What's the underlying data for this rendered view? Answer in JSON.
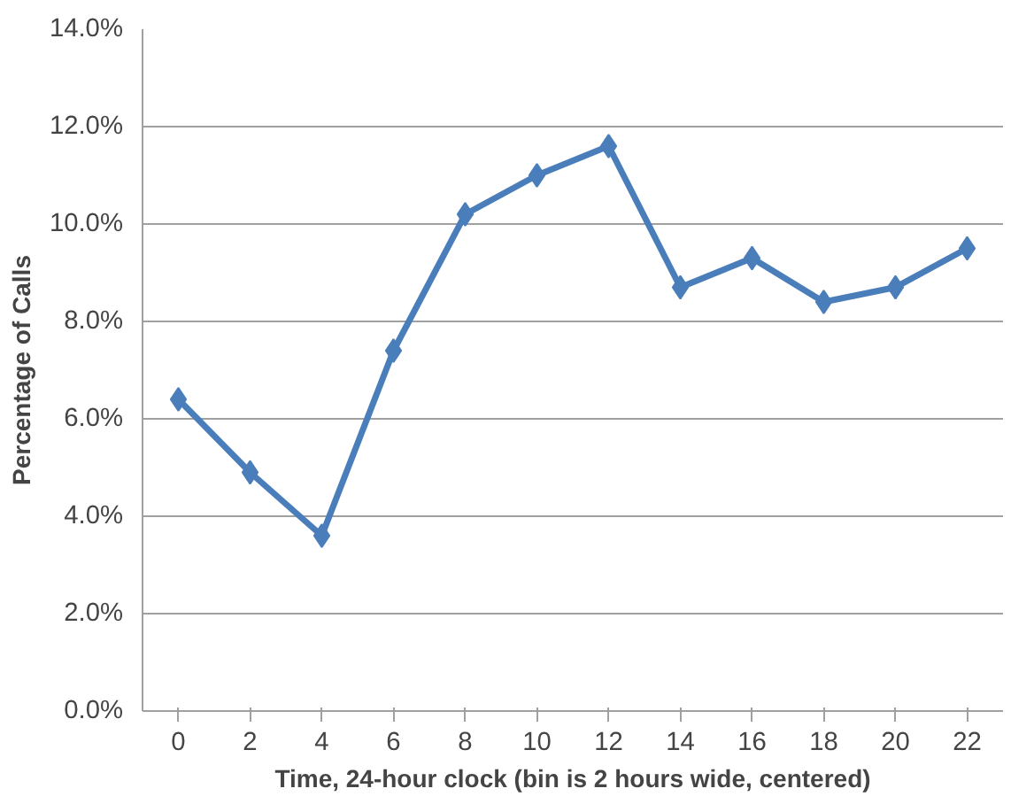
{
  "chart_data": {
    "type": "line",
    "xlabel": "Time, 24-hour clock (bin is 2 hours wide, centered)",
    "ylabel": "Percentage of Calls",
    "categories": [
      "0",
      "2",
      "4",
      "6",
      "8",
      "10",
      "12",
      "14",
      "16",
      "18",
      "20",
      "22"
    ],
    "series": [
      {
        "color": "#4a7ebb",
        "values": [
          6.4,
          4.9,
          3.6,
          7.4,
          10.2,
          11.0,
          11.6,
          8.7,
          9.3,
          8.4,
          8.7,
          9.5
        ]
      }
    ],
    "ylim": [
      0,
      14
    ],
    "yticks": [
      {
        "value": 0,
        "label": "0.0%"
      },
      {
        "value": 2,
        "label": "2.0%"
      },
      {
        "value": 4,
        "label": "4.0%"
      },
      {
        "value": 6,
        "label": "6.0%"
      },
      {
        "value": 8,
        "label": "8.0%"
      },
      {
        "value": 10,
        "label": "10.0%"
      },
      {
        "value": 12,
        "label": "12.0%"
      },
      {
        "value": 14,
        "label": "14.0%"
      }
    ],
    "grid": "y",
    "marker": "diamond",
    "line_style": "solid"
  }
}
